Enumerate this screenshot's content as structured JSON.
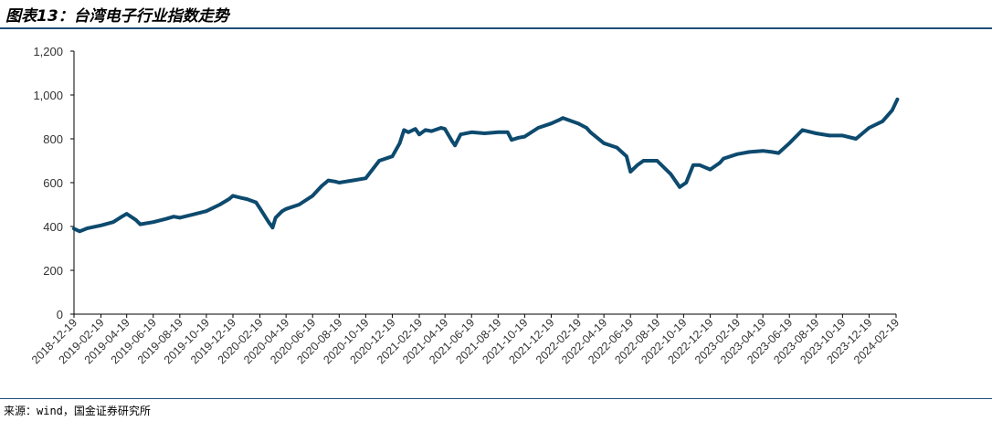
{
  "header": {
    "title": "图表13：台湾电子行业指数走势"
  },
  "footer": {
    "source": "来源：wind，国金证券研究所"
  },
  "colors": {
    "line": "#0d4a6e",
    "rule": "#1f4e79",
    "axis": "#000000"
  },
  "chart_data": {
    "type": "line",
    "title": "",
    "xlabel": "",
    "ylabel": "",
    "ylim": [
      0,
      1200
    ],
    "yticks": [
      "0",
      "200",
      "400",
      "600",
      "800",
      "1,000",
      "1,200"
    ],
    "ytick_values": [
      0,
      200,
      400,
      600,
      800,
      1000,
      1200
    ],
    "xticks": [
      "2018-12-19",
      "2019-02-19",
      "2019-04-19",
      "2019-06-19",
      "2019-08-19",
      "2019-10-19",
      "2019-12-19",
      "2020-02-19",
      "2020-04-19",
      "2020-06-19",
      "2020-08-19",
      "2020-10-19",
      "2020-12-19",
      "2021-02-19",
      "2021-04-19",
      "2021-06-19",
      "2021-08-19",
      "2021-10-19",
      "2021-12-19",
      "2022-02-19",
      "2022-04-19",
      "2022-06-19",
      "2022-08-19",
      "2022-10-19",
      "2022-12-19",
      "2023-02-19",
      "2023-04-19",
      "2023-06-19",
      "2023-08-19",
      "2023-10-19",
      "2023-12-19",
      "2024-02-19"
    ],
    "grid": false,
    "legend": "none",
    "series": [
      {
        "name": "",
        "x": [
          "2018-12-19",
          "2019-01-01",
          "2019-01-19",
          "2019-02-19",
          "2019-03-19",
          "2019-04-08",
          "2019-04-19",
          "2019-05-10",
          "2019-05-20",
          "2019-06-19",
          "2019-07-19",
          "2019-08-05",
          "2019-08-19",
          "2019-09-19",
          "2019-10-19",
          "2019-11-19",
          "2019-12-10",
          "2019-12-19",
          "2020-01-08",
          "2020-01-20",
          "2020-02-10",
          "2020-02-20",
          "2020-03-10",
          "2020-03-19",
          "2020-03-26",
          "2020-04-10",
          "2020-04-19",
          "2020-05-19",
          "2020-06-19",
          "2020-07-10",
          "2020-07-25",
          "2020-08-10",
          "2020-08-19",
          "2020-09-19",
          "2020-10-19",
          "2020-11-19",
          "2020-12-19",
          "2021-01-05",
          "2021-01-15",
          "2021-01-25",
          "2021-02-10",
          "2021-02-19",
          "2021-03-05",
          "2021-03-19",
          "2021-04-10",
          "2021-04-19",
          "2021-05-05",
          "2021-05-12",
          "2021-05-25",
          "2021-06-19",
          "2021-07-19",
          "2021-08-19",
          "2021-09-10",
          "2021-09-19",
          "2021-10-05",
          "2021-10-19",
          "2021-11-19",
          "2021-12-19",
          "2022-01-05",
          "2022-01-15",
          "2022-02-19",
          "2022-03-10",
          "2022-03-19",
          "2022-04-19",
          "2022-05-19",
          "2022-06-10",
          "2022-06-19",
          "2022-07-05",
          "2022-07-19",
          "2022-08-19",
          "2022-09-19",
          "2022-10-10",
          "2022-10-25",
          "2022-11-10",
          "2022-11-25",
          "2022-12-19",
          "2023-01-10",
          "2023-01-19",
          "2023-02-19",
          "2023-03-19",
          "2023-04-19",
          "2023-05-10",
          "2023-05-25",
          "2023-06-19",
          "2023-07-19",
          "2023-08-19",
          "2023-09-19",
          "2023-10-19",
          "2023-11-19",
          "2023-12-19",
          "2024-01-19",
          "2024-02-10",
          "2024-02-22"
        ],
        "values": [
          390,
          378,
          392,
          405,
          420,
          445,
          458,
          430,
          410,
          420,
          435,
          445,
          440,
          455,
          470,
          500,
          525,
          540,
          530,
          525,
          510,
          480,
          420,
          395,
          440,
          470,
          480,
          500,
          540,
          585,
          610,
          605,
          600,
          610,
          620,
          700,
          720,
          780,
          840,
          830,
          845,
          820,
          840,
          835,
          850,
          845,
          790,
          770,
          820,
          830,
          825,
          830,
          830,
          795,
          805,
          810,
          850,
          870,
          885,
          895,
          870,
          850,
          830,
          780,
          760,
          720,
          650,
          680,
          700,
          700,
          640,
          580,
          600,
          680,
          680,
          660,
          690,
          710,
          730,
          740,
          745,
          740,
          735,
          780,
          840,
          825,
          815,
          815,
          800,
          850,
          880,
          930,
          980
        ]
      }
    ]
  }
}
